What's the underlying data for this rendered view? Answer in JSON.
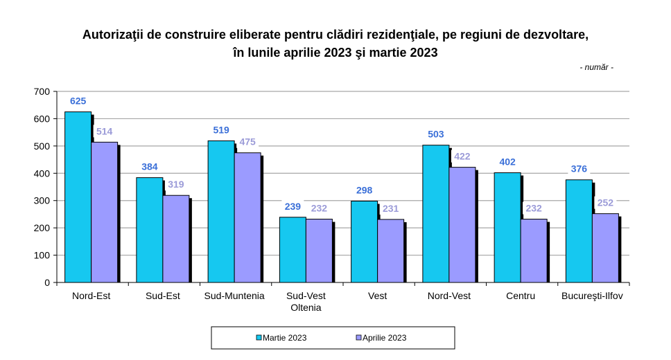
{
  "chart_data": {
    "type": "bar",
    "title_lines": [
      "Autorizaţii de construire eliberate pentru clădiri rezidenţiale, pe regiuni de dezvoltare,",
      "în lunile aprilie 2023 şi martie 2023"
    ],
    "unit_note": "- număr -",
    "categories": [
      [
        "Nord-Est"
      ],
      [
        "Sud-Est"
      ],
      [
        "Sud-Muntenia"
      ],
      [
        "Sud-Vest",
        "Oltenia"
      ],
      [
        "Vest"
      ],
      [
        "Nord-Vest"
      ],
      [
        "Centru"
      ],
      [
        "Bucureşti-Ilfov"
      ]
    ],
    "series": [
      {
        "name": "Martie 2023",
        "values": [
          625,
          384,
          519,
          239,
          298,
          503,
          402,
          376
        ],
        "color": "#16c8f0",
        "label_color": "#3a6fd8"
      },
      {
        "name": "Aprilie 2023",
        "values": [
          514,
          319,
          475,
          232,
          231,
          422,
          232,
          252
        ],
        "color": "#9b9bff",
        "label_color": "#9b9bd8"
      }
    ],
    "ylim": [
      0,
      700
    ],
    "yticks": [
      0,
      100,
      200,
      300,
      400,
      500,
      600,
      700
    ],
    "grid": true,
    "legend_position": "bottom"
  }
}
